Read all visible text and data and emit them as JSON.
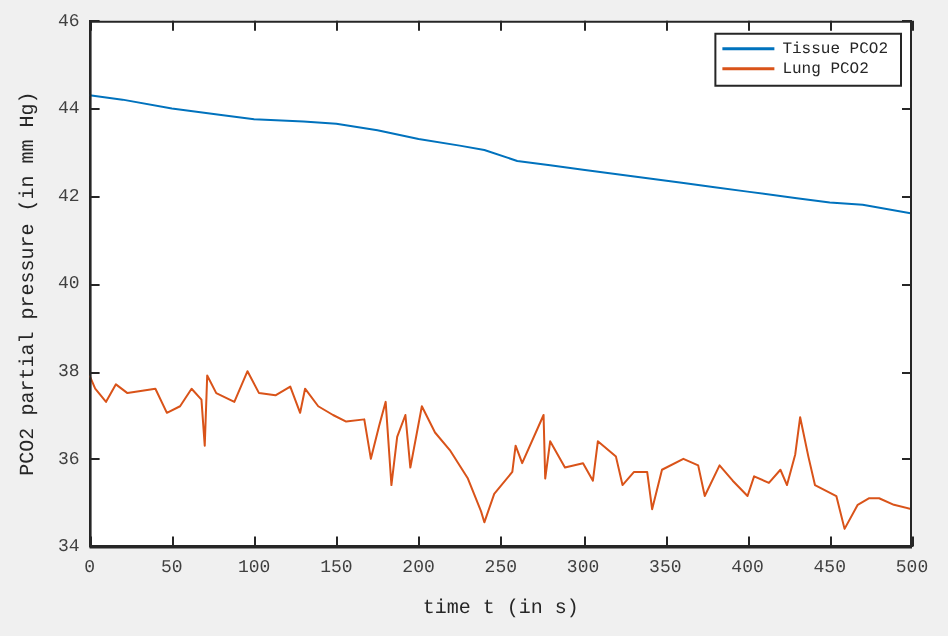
{
  "chart_data": {
    "type": "line",
    "xlabel": "time t (in s)",
    "ylabel": "PCO2 partial pressure (in mm Hg)",
    "xlim": [
      0,
      500
    ],
    "xticks": [
      0,
      50,
      100,
      150,
      200,
      250,
      300,
      350,
      400,
      450,
      500
    ],
    "ylim": [
      34,
      46
    ],
    "yticks": [
      34,
      36,
      38,
      40,
      42,
      44,
      46
    ],
    "grid": false,
    "legend": "top right",
    "marker": "none",
    "line_style": "solid",
    "series": [
      {
        "name": "Tissue PCO2",
        "color": "#0072bd",
        "x": [
          0,
          20,
          50,
          80,
          100,
          130,
          150,
          175,
          200,
          225,
          240,
          260,
          280,
          300,
          330,
          360,
          380,
          400,
          430,
          450,
          470,
          500
        ],
        "values": [
          44.3,
          44.2,
          44.0,
          43.85,
          43.75,
          43.7,
          43.65,
          43.5,
          43.3,
          43.15,
          43.05,
          42.8,
          42.7,
          42.6,
          42.45,
          42.3,
          42.2,
          42.1,
          41.95,
          41.85,
          41.8,
          41.6
        ]
      },
      {
        "name": "Lung PCO2",
        "color": "#d95319",
        "x": [
          0,
          3.4,
          10,
          16,
          23,
          40,
          47,
          55,
          62,
          68,
          70,
          71.5,
          77,
          88,
          96,
          103,
          113,
          122,
          128,
          131,
          139,
          148,
          156,
          167,
          171,
          176,
          180,
          183.5,
          187,
          192,
          195,
          202,
          210,
          219,
          230,
          238,
          240,
          246,
          257,
          259,
          263,
          276,
          277,
          280,
          289,
          300,
          306,
          309,
          320,
          324,
          331,
          339,
          342,
          348,
          361,
          370,
          374,
          383,
          391,
          400,
          404,
          413,
          420,
          424,
          429,
          432,
          437,
          441,
          454,
          459,
          467,
          474,
          480,
          489,
          500
        ],
        "values": [
          37.9,
          37.6,
          37.3,
          37.7,
          37.5,
          37.6,
          37.05,
          37.2,
          37.6,
          37.35,
          36.3,
          37.9,
          37.5,
          37.3,
          38.0,
          37.5,
          37.45,
          37.65,
          37.05,
          37.6,
          37.2,
          37.0,
          36.85,
          36.9,
          36.0,
          36.75,
          37.3,
          35.4,
          36.5,
          37.0,
          35.8,
          37.2,
          36.6,
          36.2,
          35.55,
          34.8,
          34.55,
          35.2,
          35.7,
          36.3,
          35.9,
          37.0,
          35.55,
          36.4,
          35.8,
          35.9,
          35.5,
          36.4,
          36.05,
          35.4,
          35.7,
          35.7,
          34.85,
          35.75,
          36.0,
          35.85,
          35.15,
          35.85,
          35.5,
          35.15,
          35.6,
          35.45,
          35.75,
          35.4,
          36.1,
          36.95,
          36.05,
          35.4,
          35.15,
          34.4,
          34.95,
          35.1,
          35.1,
          34.95,
          34.85
        ]
      }
    ]
  }
}
